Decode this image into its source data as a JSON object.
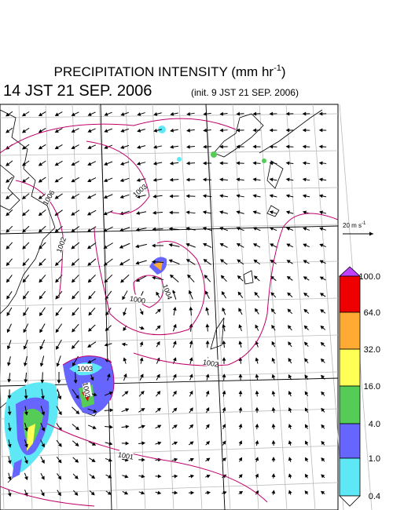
{
  "header": {
    "title": "PRECIPITATION INTENSITY (mm hr",
    "title_sup": "-1",
    "title_end": ")",
    "valid_time": "14 JST 21 SEP. 2006",
    "init_time": "(init. 9 JST 21 SEP. 2006)"
  },
  "wind_scale": {
    "label": "20 m s",
    "label_sup": "-1"
  },
  "colorbar": {
    "levels": [
      "100.0",
      "64.0",
      "32.0",
      "16.0",
      "4.0",
      "1.0",
      "0.4"
    ]
  },
  "isobars": {
    "labels": [
      "1006",
      "1003",
      "1002",
      "1000",
      "1004",
      "1003",
      "1002",
      "1002",
      "1001"
    ]
  }
}
